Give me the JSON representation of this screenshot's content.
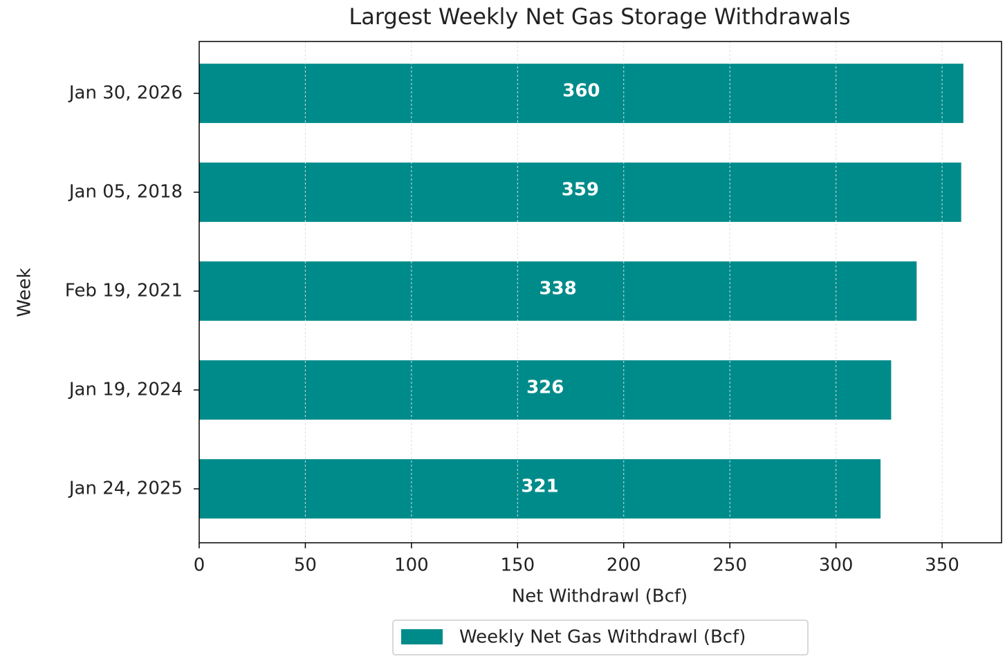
{
  "chart_data": {
    "type": "barh",
    "title": "Largest Weekly Net Gas Storage Withdrawals",
    "x_label": "Net Withdrawl (Bcf)",
    "y_label": "Week",
    "categories": [
      "Jan 30, 2026",
      "Jan 05, 2018",
      "Feb 19, 2021",
      "Jan 19, 2024",
      "Jan 24, 2025"
    ],
    "series": [
      {
        "name": "Weekly Net Gas Withdrawl (Bcf)",
        "color": "#008b8b",
        "values": [
          360,
          359,
          338,
          326,
          321
        ]
      }
    ],
    "xlim": [
      0,
      378
    ],
    "xticks": [
      0,
      50,
      100,
      150,
      200,
      250,
      300,
      350
    ],
    "grid": true,
    "legend": "bottom"
  }
}
